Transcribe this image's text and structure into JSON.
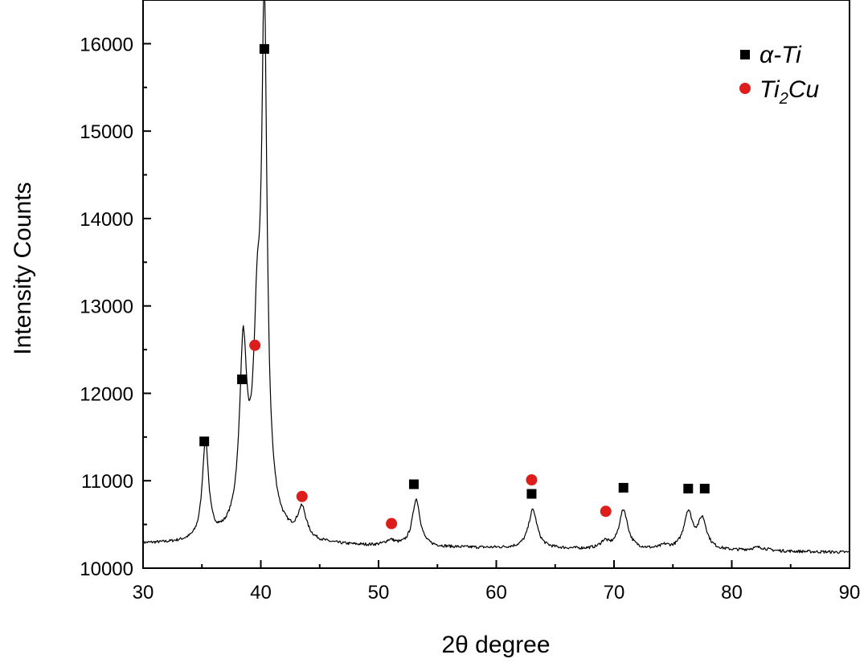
{
  "chart_data": {
    "type": "line",
    "xlabel": "2θ degree",
    "ylabel": "Intensity Counts",
    "xlim": [
      30,
      90
    ],
    "ylim": [
      10000,
      16500
    ],
    "x_ticks": [
      "30",
      "40",
      "50",
      "60",
      "70",
      "80",
      "90"
    ],
    "y_ticks": [
      "10000",
      "11000",
      "12000",
      "13000",
      "14000",
      "15000",
      "16000"
    ],
    "grid": false,
    "legend_position": "top-right",
    "legend": [
      {
        "label_main": "α-Ti",
        "label_sub": "",
        "label_tail": "",
        "marker": "square",
        "color": "#000000"
      },
      {
        "label_main": "Ti",
        "label_sub": "2",
        "label_tail": "Cu",
        "marker": "circle",
        "color": "#dd1c1c"
      }
    ],
    "pattern_profile": {
      "baseline_start": 10270,
      "baseline_end": 10180,
      "peaks": [
        {
          "x": 35.3,
          "height": 1120,
          "width": 0.32
        },
        {
          "x": 38.5,
          "height": 1850,
          "width": 0.35
        },
        {
          "x": 38.9,
          "height": 250,
          "width": 1.1
        },
        {
          "x": 39.7,
          "height": 1700,
          "width": 0.35
        },
        {
          "x": 40.3,
          "height": 5480,
          "width": 0.27
        },
        {
          "x": 40.1,
          "height": 400,
          "width": 1.3
        },
        {
          "x": 43.5,
          "height": 340,
          "width": 0.45
        },
        {
          "x": 51.0,
          "height": 60,
          "width": 0.5
        },
        {
          "x": 53.2,
          "height": 540,
          "width": 0.4
        },
        {
          "x": 63.1,
          "height": 440,
          "width": 0.45
        },
        {
          "x": 69.2,
          "height": 80,
          "width": 0.4
        },
        {
          "x": 70.8,
          "height": 450,
          "width": 0.45
        },
        {
          "x": 74.3,
          "height": 40,
          "width": 0.4
        },
        {
          "x": 76.3,
          "height": 420,
          "width": 0.45
        },
        {
          "x": 77.5,
          "height": 340,
          "width": 0.45
        },
        {
          "x": 82.3,
          "height": 40,
          "width": 0.8
        }
      ]
    },
    "series": [
      {
        "name": "α-Ti",
        "marker": "square",
        "color": "#000000",
        "points": [
          {
            "x": 35.2,
            "y": 11450
          },
          {
            "x": 38.4,
            "y": 12160
          },
          {
            "x": 40.3,
            "y": 15940
          },
          {
            "x": 53.0,
            "y": 10960
          },
          {
            "x": 63.0,
            "y": 10850
          },
          {
            "x": 70.8,
            "y": 10920
          },
          {
            "x": 76.3,
            "y": 10910
          },
          {
            "x": 77.7,
            "y": 10910
          }
        ]
      },
      {
        "name": "Ti2Cu",
        "marker": "circle",
        "color": "#dd1c1c",
        "points": [
          {
            "x": 39.5,
            "y": 12550
          },
          {
            "x": 43.5,
            "y": 10820
          },
          {
            "x": 51.1,
            "y": 10510
          },
          {
            "x": 63.0,
            "y": 11010
          },
          {
            "x": 69.3,
            "y": 10650
          }
        ]
      }
    ]
  }
}
